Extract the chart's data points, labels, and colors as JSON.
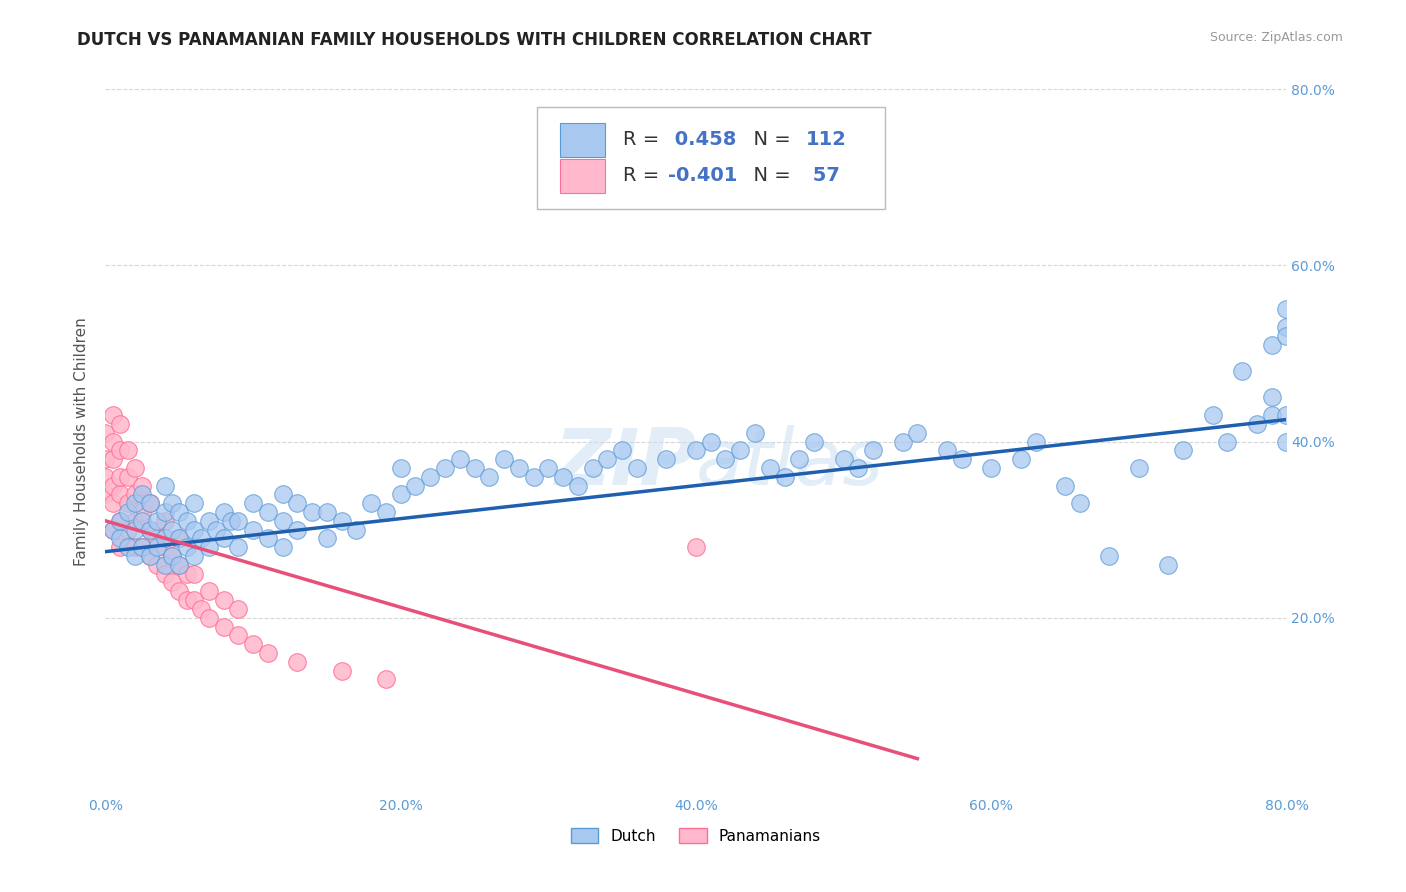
{
  "title": "DUTCH VS PANAMANIAN FAMILY HOUSEHOLDS WITH CHILDREN CORRELATION CHART",
  "source": "Source: ZipAtlas.com",
  "ylabel": "Family Households with Children",
  "xlim": [
    0.0,
    0.8
  ],
  "ylim": [
    0.0,
    0.8
  ],
  "xtick_labels": [
    "0.0%",
    "20.0%",
    "40.0%",
    "60.0%",
    "80.0%"
  ],
  "xtick_vals": [
    0.0,
    0.2,
    0.4,
    0.6,
    0.8
  ],
  "ytick_labels": [
    "20.0%",
    "40.0%",
    "60.0%",
    "80.0%"
  ],
  "ytick_vals": [
    0.2,
    0.4,
    0.6,
    0.8
  ],
  "dutch_color": "#A8C8F0",
  "dutch_edge_color": "#5B9BD5",
  "panama_color": "#FFB8CC",
  "panama_edge_color": "#FF7096",
  "trend_dutch_color": "#1F5FAF",
  "trend_panama_color": "#E8507A",
  "dutch_R": 0.458,
  "dutch_N": 112,
  "panama_R": -0.401,
  "panama_N": 57,
  "legend_dutch_label": "Dutch",
  "legend_panama_label": "Panamanians",
  "background_color": "#FFFFFF",
  "grid_color": "#CCCCCC",
  "title_fontsize": 12,
  "axis_label_fontsize": 11,
  "tick_fontsize": 10,
  "legend_fontsize": 14,
  "dutch_x": [
    0.005,
    0.01,
    0.01,
    0.015,
    0.015,
    0.02,
    0.02,
    0.02,
    0.025,
    0.025,
    0.025,
    0.03,
    0.03,
    0.03,
    0.035,
    0.035,
    0.04,
    0.04,
    0.04,
    0.04,
    0.045,
    0.045,
    0.045,
    0.05,
    0.05,
    0.05,
    0.055,
    0.055,
    0.06,
    0.06,
    0.06,
    0.065,
    0.07,
    0.07,
    0.075,
    0.08,
    0.08,
    0.085,
    0.09,
    0.09,
    0.1,
    0.1,
    0.11,
    0.11,
    0.12,
    0.12,
    0.12,
    0.13,
    0.13,
    0.14,
    0.15,
    0.15,
    0.16,
    0.17,
    0.18,
    0.19,
    0.2,
    0.2,
    0.21,
    0.22,
    0.23,
    0.24,
    0.25,
    0.26,
    0.27,
    0.28,
    0.29,
    0.3,
    0.31,
    0.32,
    0.33,
    0.34,
    0.35,
    0.36,
    0.38,
    0.4,
    0.41,
    0.42,
    0.43,
    0.44,
    0.45,
    0.46,
    0.47,
    0.48,
    0.5,
    0.51,
    0.52,
    0.54,
    0.55,
    0.57,
    0.58,
    0.6,
    0.62,
    0.63,
    0.65,
    0.66,
    0.68,
    0.7,
    0.72,
    0.73,
    0.75,
    0.76,
    0.77,
    0.78,
    0.79,
    0.79,
    0.79,
    0.8,
    0.8,
    0.8,
    0.8,
    0.8
  ],
  "dutch_y": [
    0.3,
    0.29,
    0.31,
    0.28,
    0.32,
    0.27,
    0.3,
    0.33,
    0.28,
    0.31,
    0.34,
    0.27,
    0.3,
    0.33,
    0.28,
    0.31,
    0.26,
    0.29,
    0.32,
    0.35,
    0.27,
    0.3,
    0.33,
    0.26,
    0.29,
    0.32,
    0.28,
    0.31,
    0.27,
    0.3,
    0.33,
    0.29,
    0.28,
    0.31,
    0.3,
    0.29,
    0.32,
    0.31,
    0.28,
    0.31,
    0.3,
    0.33,
    0.29,
    0.32,
    0.28,
    0.31,
    0.34,
    0.3,
    0.33,
    0.32,
    0.29,
    0.32,
    0.31,
    0.3,
    0.33,
    0.32,
    0.34,
    0.37,
    0.35,
    0.36,
    0.37,
    0.38,
    0.37,
    0.36,
    0.38,
    0.37,
    0.36,
    0.37,
    0.36,
    0.35,
    0.37,
    0.38,
    0.39,
    0.37,
    0.38,
    0.39,
    0.4,
    0.38,
    0.39,
    0.41,
    0.37,
    0.36,
    0.38,
    0.4,
    0.38,
    0.37,
    0.39,
    0.4,
    0.41,
    0.39,
    0.38,
    0.37,
    0.38,
    0.4,
    0.35,
    0.33,
    0.27,
    0.37,
    0.26,
    0.39,
    0.43,
    0.4,
    0.48,
    0.42,
    0.43,
    0.51,
    0.45,
    0.4,
    0.55,
    0.53,
    0.52,
    0.43
  ],
  "panama_x": [
    0.0,
    0.0,
    0.0,
    0.0,
    0.005,
    0.005,
    0.005,
    0.005,
    0.005,
    0.005,
    0.01,
    0.01,
    0.01,
    0.01,
    0.01,
    0.01,
    0.015,
    0.015,
    0.015,
    0.015,
    0.02,
    0.02,
    0.02,
    0.02,
    0.025,
    0.025,
    0.025,
    0.03,
    0.03,
    0.03,
    0.035,
    0.035,
    0.04,
    0.04,
    0.04,
    0.045,
    0.045,
    0.05,
    0.05,
    0.05,
    0.055,
    0.055,
    0.06,
    0.06,
    0.065,
    0.07,
    0.07,
    0.08,
    0.08,
    0.09,
    0.09,
    0.1,
    0.11,
    0.13,
    0.16,
    0.19,
    0.4
  ],
  "panama_y": [
    0.34,
    0.36,
    0.38,
    0.41,
    0.3,
    0.33,
    0.35,
    0.38,
    0.4,
    0.43,
    0.28,
    0.31,
    0.34,
    0.36,
    0.39,
    0.42,
    0.3,
    0.33,
    0.36,
    0.39,
    0.28,
    0.31,
    0.34,
    0.37,
    0.28,
    0.32,
    0.35,
    0.27,
    0.3,
    0.33,
    0.26,
    0.29,
    0.25,
    0.28,
    0.31,
    0.24,
    0.27,
    0.23,
    0.26,
    0.29,
    0.22,
    0.25,
    0.22,
    0.25,
    0.21,
    0.2,
    0.23,
    0.19,
    0.22,
    0.18,
    0.21,
    0.17,
    0.16,
    0.15,
    0.14,
    0.13,
    0.28
  ],
  "dutch_trend_x0": 0.0,
  "dutch_trend_x1": 0.8,
  "dutch_trend_y0": 0.275,
  "dutch_trend_y1": 0.425,
  "panama_trend_x0": 0.0,
  "panama_trend_x1": 0.55,
  "panama_trend_y0": 0.31,
  "panama_trend_y1": 0.04
}
